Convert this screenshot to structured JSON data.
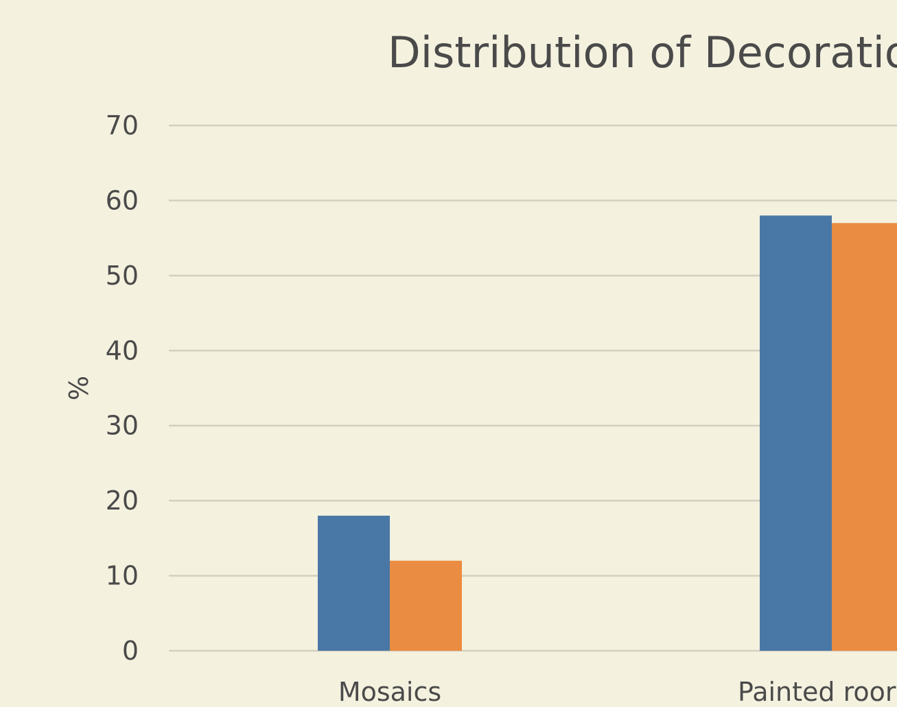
{
  "chart_data": {
    "type": "bar",
    "title": "Distribution of Decoratior",
    "xlabel": "",
    "ylabel": "%",
    "ylim": [
      0,
      70
    ],
    "yticks": [
      "0",
      "10",
      "20",
      "30",
      "40",
      "50",
      "60",
      "70"
    ],
    "categories": [
      "Mosaics",
      "Painted roor"
    ],
    "series": [
      {
        "values": [
          18,
          58
        ]
      },
      {
        "values": [
          12,
          57
        ]
      }
    ],
    "colors": [
      "#4a78a6",
      "#ea8c41"
    ],
    "grid": true
  }
}
